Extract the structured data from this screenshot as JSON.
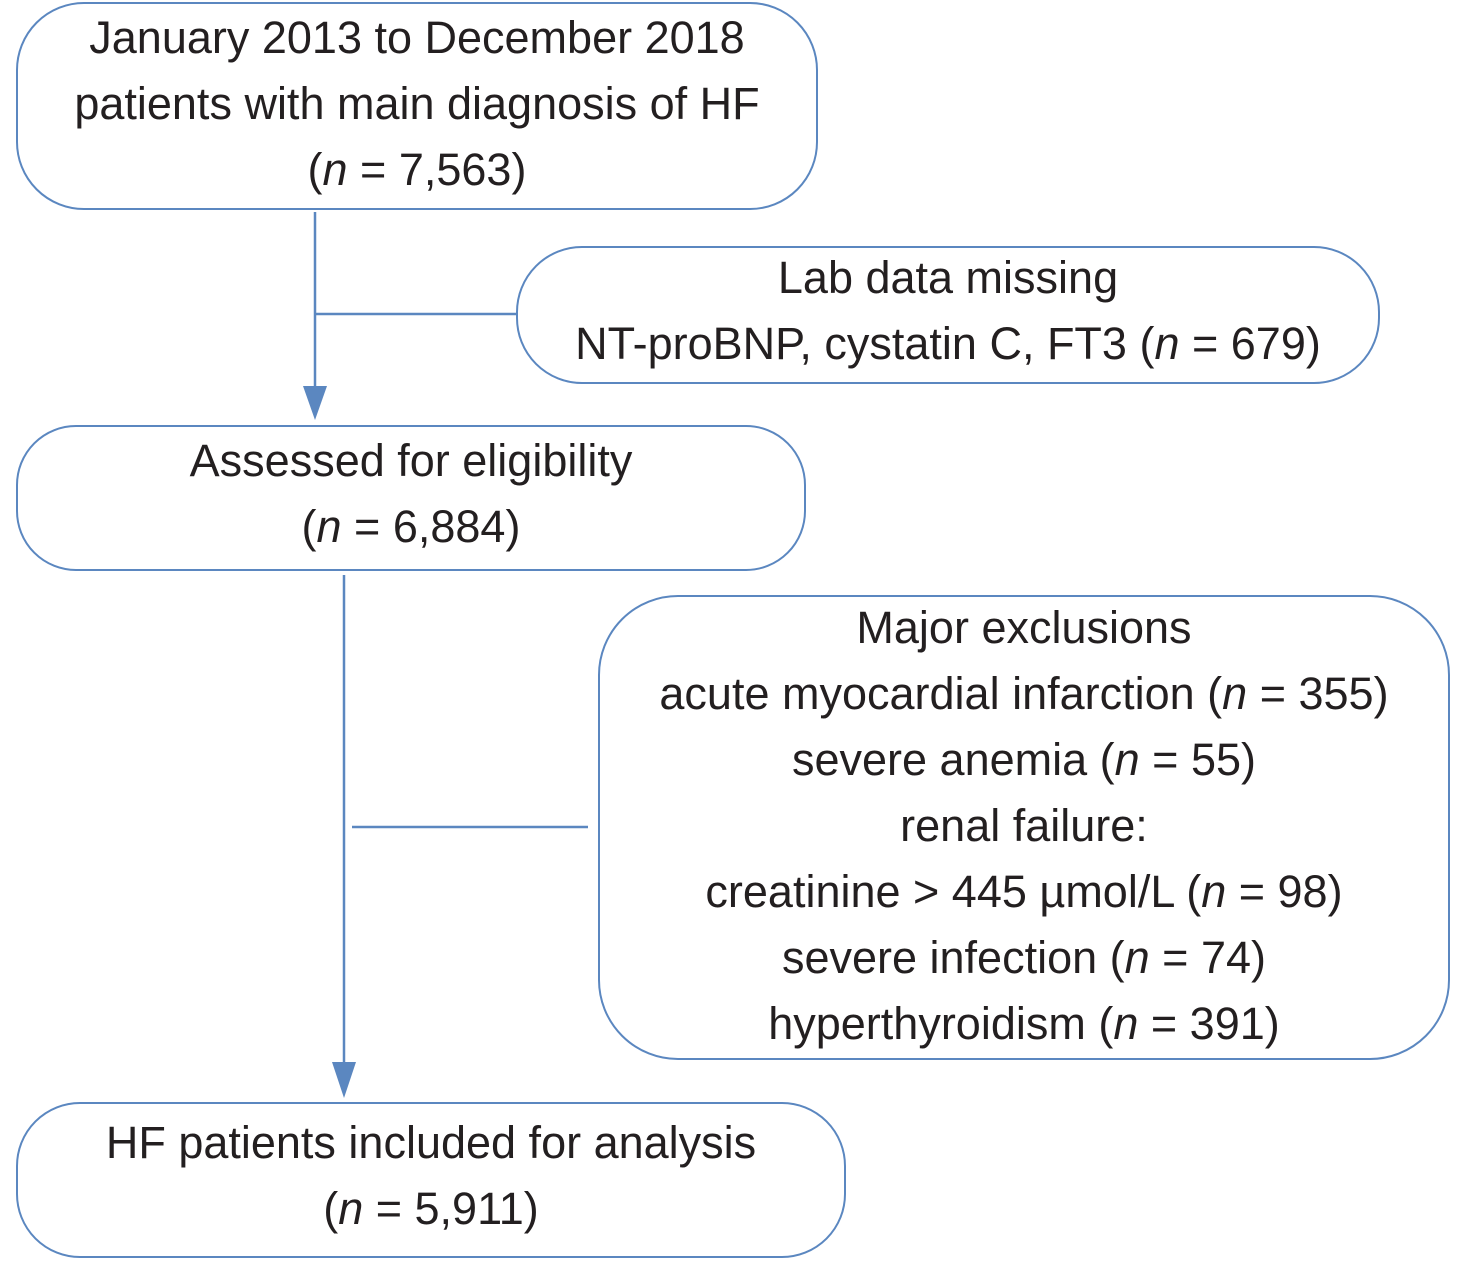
{
  "flowchart": {
    "start": {
      "line1": "January 2013 to December 2018",
      "line2": "patients with main diagnosis of HF",
      "n_label": "n",
      "n_value": "7,563"
    },
    "lab_missing": {
      "line1": "Lab data missing",
      "line2_prefix": "NT-proBNP, cystatin C, FT3 (",
      "n_label": "n",
      "n_value": "679"
    },
    "assessed": {
      "line1": "Assessed for eligibility",
      "n_label": "n",
      "n_value": "6,884"
    },
    "exclusions": {
      "title": "Major exclusions",
      "items": [
        {
          "label": "acute myocardial infarction",
          "n_label": "n",
          "n_value": "355"
        },
        {
          "label": "severe anemia",
          "n_label": "n",
          "n_value": "55"
        },
        {
          "label": "renal failure:",
          "n_label": "",
          "n_value": ""
        },
        {
          "label": "creatinine > 445 µmol/L",
          "n_label": "n",
          "n_value": "98"
        },
        {
          "label": "severe infection",
          "n_label": "n",
          "n_value": "74"
        },
        {
          "label": "hyperthyroidism",
          "n_label": "n",
          "n_value": "391"
        }
      ]
    },
    "final": {
      "line1": "HF patients included for analysis",
      "n_label": "n",
      "n_value": "5,911"
    }
  },
  "colors": {
    "border": "#5b87c0",
    "text": "#231f20"
  }
}
